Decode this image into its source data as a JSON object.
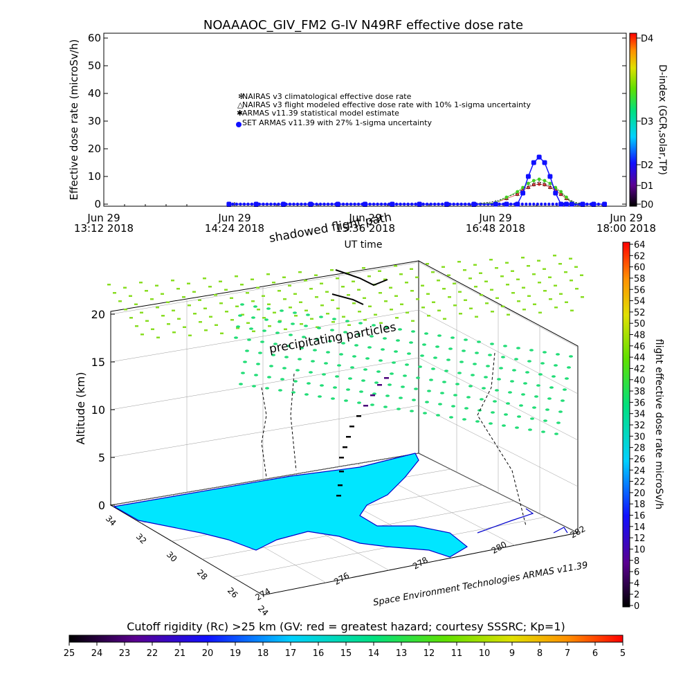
{
  "colors": {
    "background": "#ffffff",
    "axis": "#000000",
    "nairas_clim": "#e04040",
    "nairas_flight": "#000000",
    "armas_stat": "#44cc22",
    "set_armas": "#1010ff",
    "land": "#00e6ff",
    "coast": "#0000cc",
    "dose_green_light": "#88dd22",
    "dose_green": "#22dd77"
  },
  "top_panel": {
    "title": "NOAAAOC_GIV_FM2 G-IV   N49RF  effective dose rate",
    "ylabel": "Effective dose rate (microSv/h)",
    "xlabel": "UT time",
    "right_axis_label": "D-index (GCR,solar,TP)",
    "right_ticks": [
      "D4",
      "D3",
      "D2",
      "D1",
      "D0"
    ],
    "legend": [
      "NAIRAS v3 climatological effective dose rate",
      "NAIRAS v3 flight modeled effective dose rate with 10% 1-sigma uncertainty",
      "ARMAS v11.39 statistical model estimate",
      "SET ARMAS v11.39 with 27% 1-sigma uncertainty"
    ],
    "x_ticks": [
      {
        "line1": "Jun 29",
        "line2": "13:12 2018"
      },
      {
        "line1": "Jun 29",
        "line2": "14:24 2018"
      },
      {
        "line1": "Jun 29",
        "line2": "15:36 2018"
      },
      {
        "line1": "Jun 29",
        "line2": "16:48 2018"
      },
      {
        "line1": "Jun 29",
        "line2": "18:00 2018"
      }
    ]
  },
  "chart_data": [
    {
      "type": "scatter",
      "title": "NOAAAOC_GIV_FM2 G-IV   N49RF  effective dose rate",
      "xlabel": "UT time",
      "ylabel": "Effective dose rate (microSv/h)",
      "x_unit": "hours UT (Jun 29 2018)",
      "xlim": [
        13.2,
        18.0
      ],
      "ylim": [
        0,
        60
      ],
      "y_ticks": [
        0,
        10,
        20,
        30,
        40,
        50,
        60
      ],
      "x": [
        14.35,
        14.6,
        14.85,
        15.1,
        15.35,
        15.6,
        15.85,
        16.1,
        16.35,
        16.6,
        16.8,
        16.9,
        17.0,
        17.05,
        17.1,
        17.15,
        17.2,
        17.25,
        17.3,
        17.35,
        17.4,
        17.45,
        17.5,
        17.6,
        17.7,
        17.8
      ],
      "series": [
        {
          "name": "NAIRAS v3 climatological effective dose rate",
          "values": [
            0,
            0,
            0,
            0,
            0,
            0,
            0,
            0,
            0,
            0,
            0.5,
            2,
            3.5,
            5,
            6,
            7,
            7.2,
            7,
            6,
            5,
            3.5,
            2,
            0.5,
            0,
            0,
            0
          ]
        },
        {
          "name": "NAIRAS v3 flight modeled effective dose rate with 10% 1-sigma uncertainty",
          "values": [
            0,
            0,
            0,
            0,
            0,
            0,
            0,
            0,
            0,
            0,
            1,
            2.5,
            4,
            5.5,
            6.5,
            7.5,
            8,
            7.5,
            6.5,
            5.5,
            4,
            2.5,
            1,
            0,
            0,
            0
          ]
        },
        {
          "name": "ARMAS v11.39 statistical model estimate",
          "values": [
            0,
            0,
            0,
            0,
            0,
            0,
            0,
            0,
            0,
            0,
            0.5,
            2.5,
            4.5,
            6,
            7.5,
            8.5,
            9,
            8.5,
            7.5,
            6,
            4.5,
            2.5,
            0.5,
            0,
            0,
            0
          ]
        },
        {
          "name": "SET ARMAS v11.39 with 27% 1-sigma uncertainty",
          "values": [
            0,
            0,
            0,
            0,
            0,
            0,
            0,
            0,
            0,
            0,
            0,
            0,
            0,
            4,
            10,
            15,
            17,
            15,
            10,
            4,
            0,
            0,
            0,
            0,
            0,
            0
          ]
        }
      ]
    },
    {
      "type": "scatter",
      "title": "",
      "zlabel": "Altitude (km)",
      "z_ticks": [
        0,
        5,
        10,
        15,
        20
      ],
      "lat_ticks": [
        34,
        32,
        30,
        28,
        26,
        24
      ],
      "lon_ticks": [
        274,
        276,
        278,
        280,
        282
      ],
      "annotations": [
        "shadowed flight path",
        "precipitating particles"
      ],
      "credit": "Space Environment Technologies ARMAS v11.39",
      "flight_path_altitude_km": [
        0,
        2,
        5,
        8,
        10,
        12,
        13,
        12,
        10,
        8,
        5,
        2,
        0
      ]
    }
  ],
  "dose_colorbar": {
    "label": "flight effective dose rate microSv/h",
    "ticks": [
      64,
      62,
      60,
      58,
      56,
      54,
      52,
      50,
      48,
      46,
      44,
      42,
      40,
      38,
      36,
      34,
      32,
      30,
      28,
      26,
      24,
      22,
      20,
      18,
      16,
      14,
      12,
      10,
      8,
      6,
      4,
      2,
      0
    ]
  },
  "cutoff_colorbar": {
    "label": "Cutoff rigidity (Rc) >25 km (GV: red = greatest hazard; courtesy SSSRC; Kp=1)",
    "ticks": [
      25,
      24,
      23,
      22,
      21,
      20,
      19,
      18,
      17,
      16,
      15,
      14,
      13,
      12,
      11,
      10,
      9,
      8,
      7,
      6,
      5
    ]
  },
  "overlap_text": "shadowed flight path"
}
